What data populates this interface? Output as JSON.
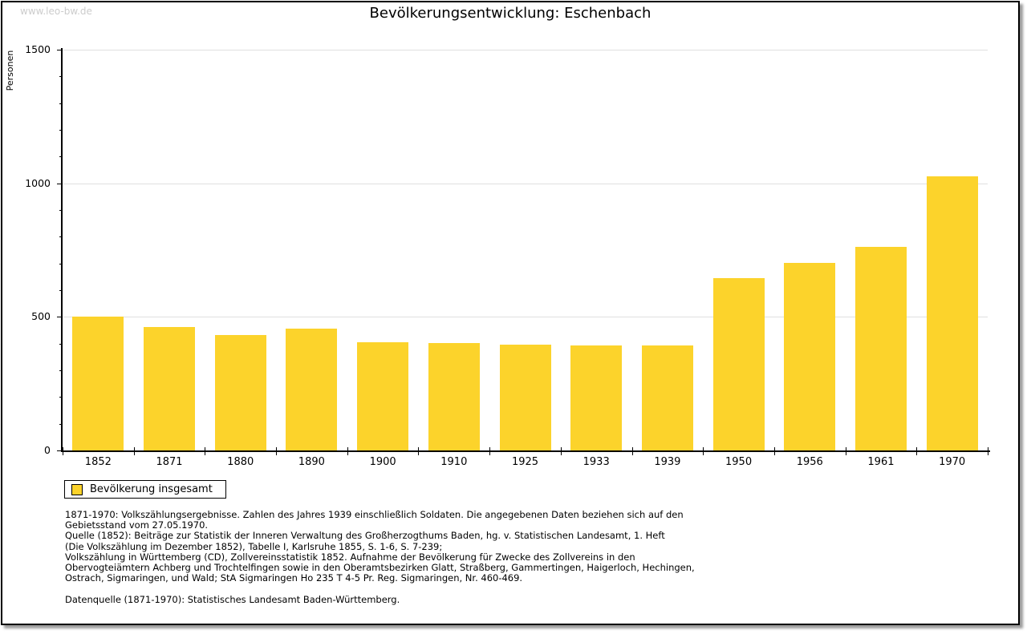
{
  "watermark": "www.leo-bw.de",
  "chart_data": {
    "type": "bar",
    "title": "Bevölkerungsentwicklung: Eschenbach",
    "xlabel": "",
    "ylabel": "Personen",
    "categories": [
      "1852",
      "1871",
      "1880",
      "1890",
      "1900",
      "1910",
      "1925",
      "1933",
      "1939",
      "1950",
      "1956",
      "1961",
      "1970"
    ],
    "values": [
      500,
      461,
      433,
      455,
      406,
      401,
      397,
      392,
      393,
      645,
      702,
      761,
      1026
    ],
    "ylim": [
      0,
      1500
    ],
    "ytick_major": 500,
    "ytick_minor": 100,
    "grid": "horizontal-major-only",
    "legend_position": "bottom-left",
    "bar_color": "#FCD32B"
  },
  "legend": {
    "label": "Bevölkerung insgesamt"
  },
  "footnotes": {
    "lines": [
      "1871-1970: Volkszählungsergebnisse. Zahlen des Jahres 1939 einschließlich Soldaten. Die angegebenen Daten beziehen sich auf den",
      "Gebietsstand vom 27.05.1970.",
      "Quelle (1852): Beiträge zur Statistik der Inneren Verwaltung des Großherzogthums Baden, hg. v. Statistischen Landesamt, 1. Heft",
      "(Die Volkszählung im Dezember 1852), Tabelle I, Karlsruhe 1855, S. 1-6, S. 7-239;",
      "Volkszählung in Württemberg (CD), Zollvereinsstatistik 1852. Aufnahme der Bevölkerung für Zwecke des Zollvereins in den",
      "Obervogteiämtern Achberg und Trochtelfingen sowie in den Oberamtsbezirken Glatt, Straßberg, Gammertingen, Haigerloch, Hechingen,",
      "Ostrach, Sigmaringen, und Wald; StA Sigmaringen Ho 235 T 4-5 Pr. Reg. Sigmaringen, Nr. 460-469."
    ]
  },
  "datasource": "Datenquelle (1871-1970): Statistisches Landesamt Baden-Württemberg.",
  "colors": {
    "bar": "#FCD32B",
    "grid": "#e0e0e0",
    "axis": "#000000",
    "watermark": "#cccccc",
    "frame_shadow": "#9b9b9b"
  }
}
